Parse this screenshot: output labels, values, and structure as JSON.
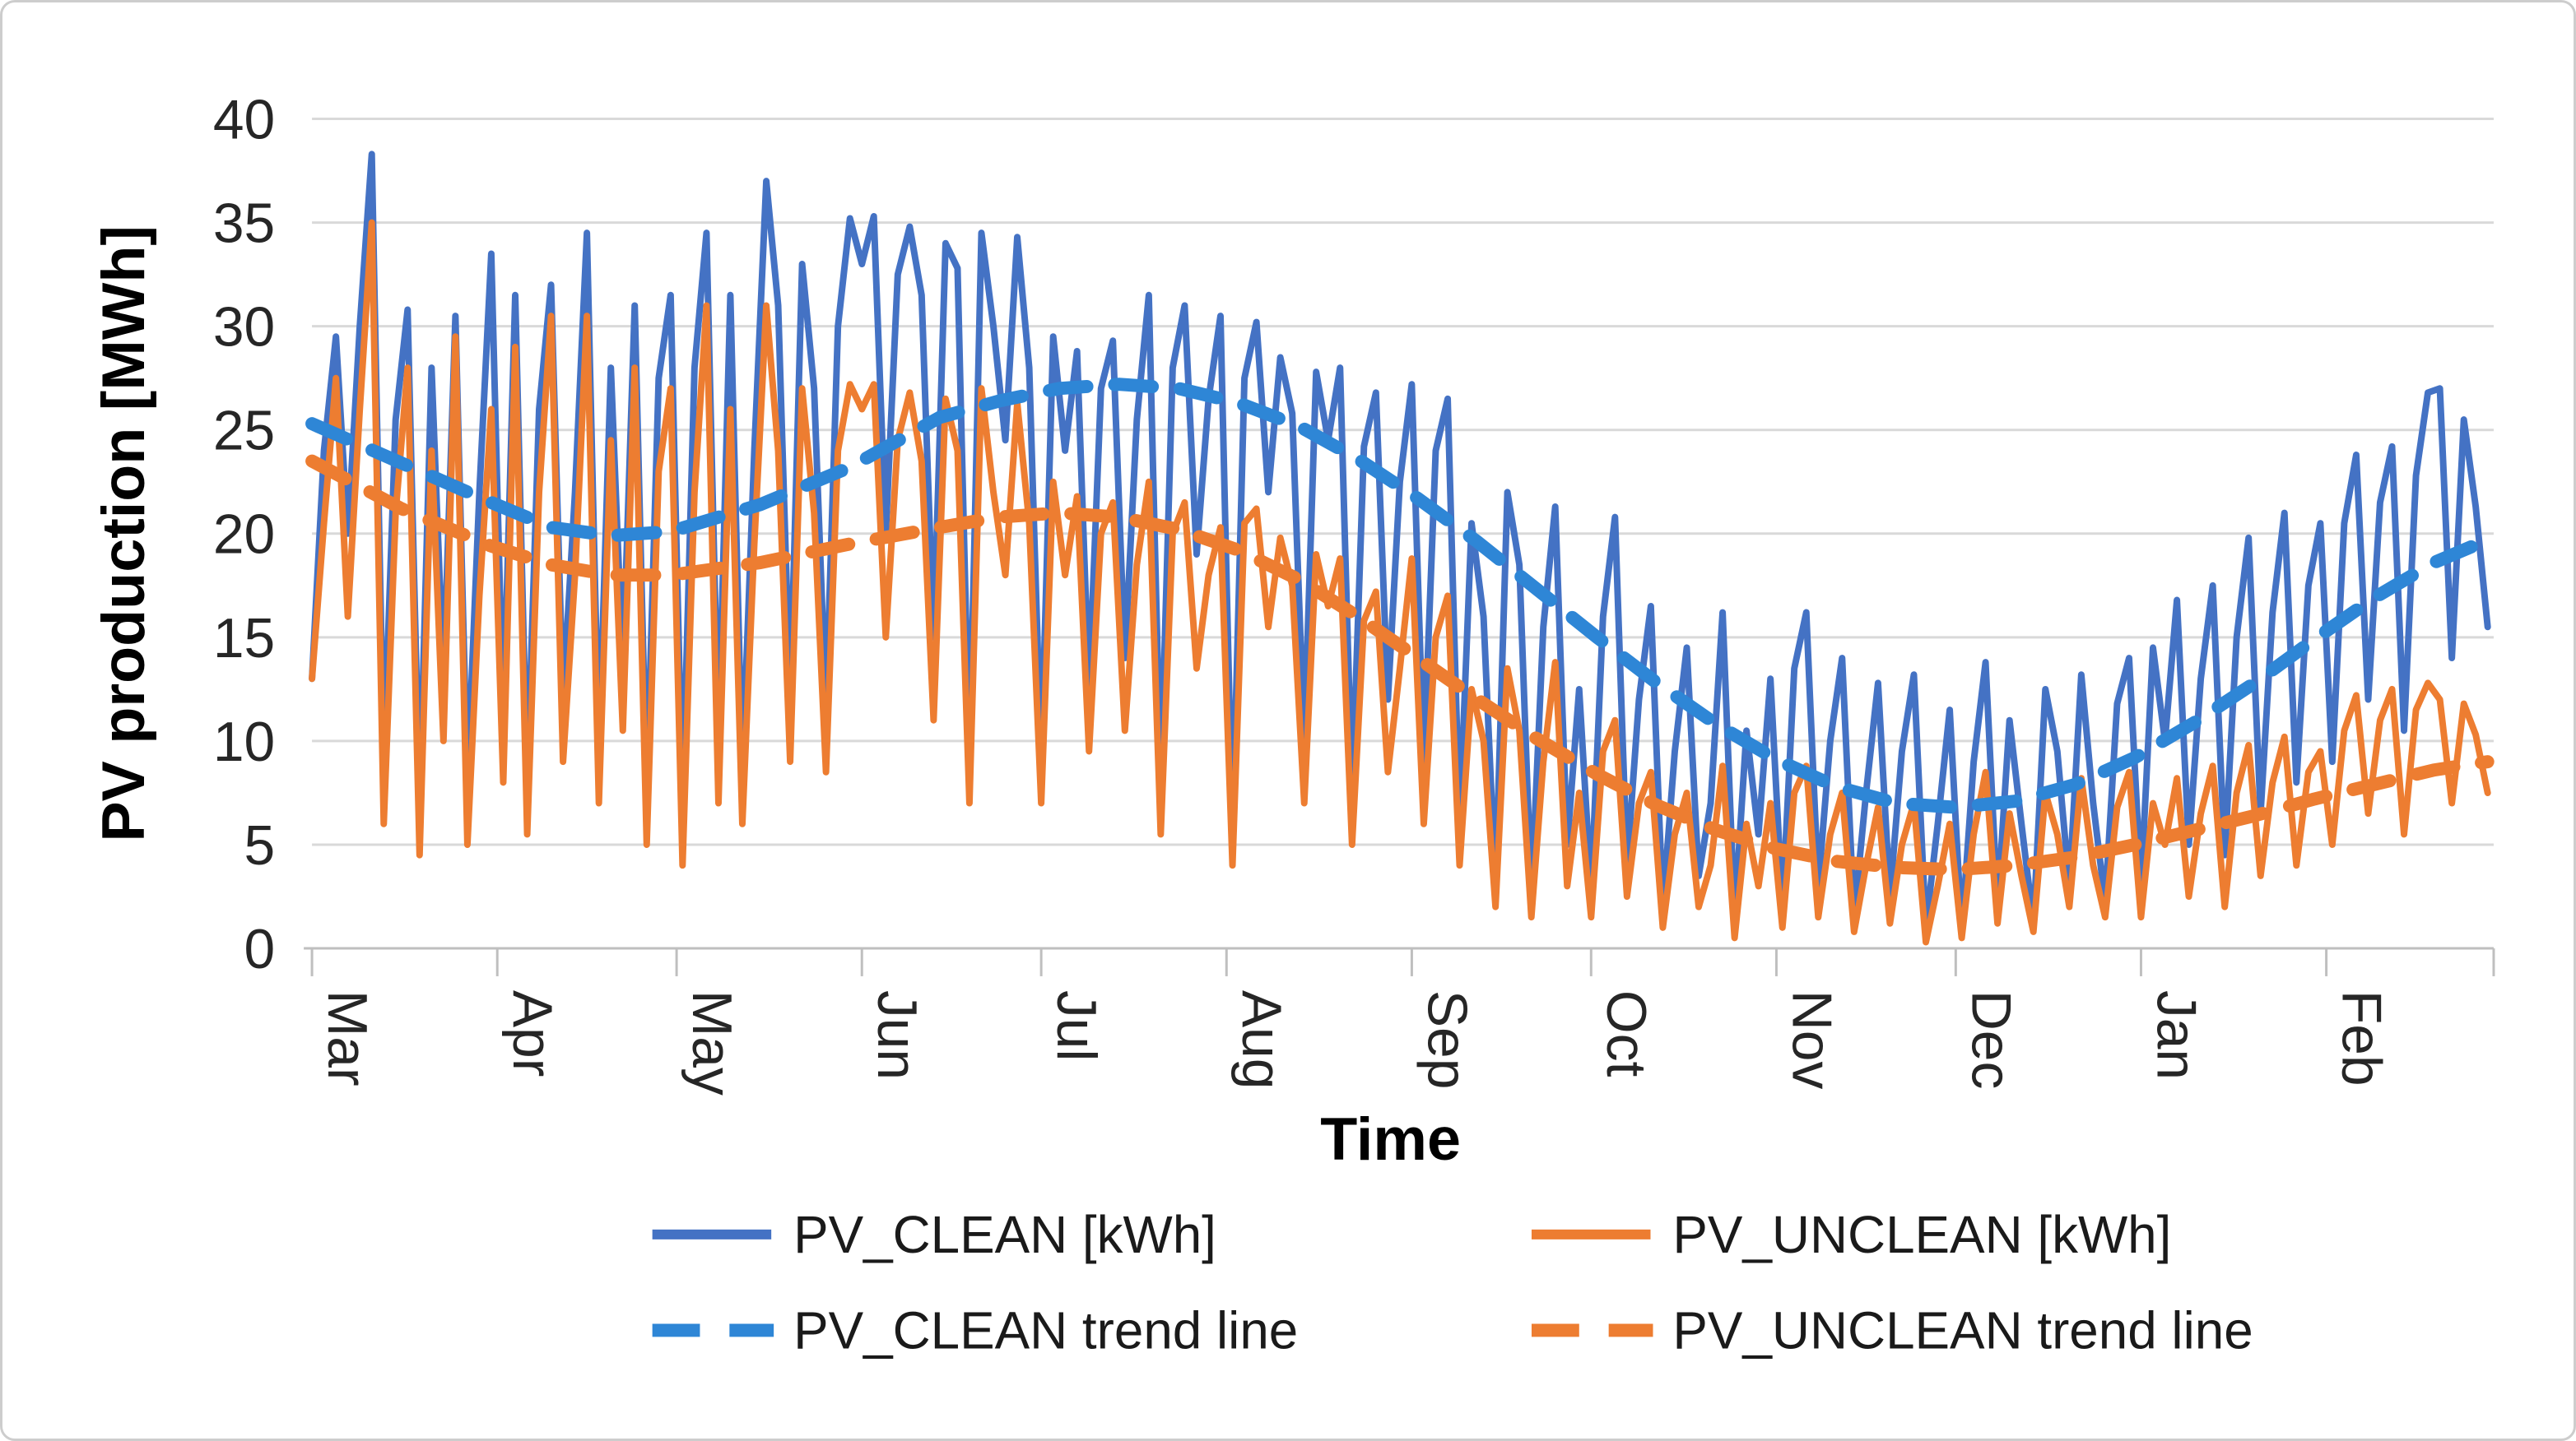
{
  "chart_data": {
    "type": "line",
    "title": "",
    "grid": true,
    "legend_position": "bottom",
    "x_axis": {
      "title": "Time",
      "tick_labels": [
        "Mar",
        "Apr",
        "May",
        "Jun",
        "Jul",
        "Aug",
        "Sep",
        "Oct",
        "Nov",
        "Dec",
        "Jan",
        "Feb"
      ],
      "month_start_days": [
        0,
        31,
        61,
        92,
        122,
        153,
        184,
        214,
        245,
        275,
        306,
        337,
        365
      ],
      "total_days": 365
    },
    "y_axis": {
      "title": "PV production [MWh]",
      "min": 0,
      "max": 40,
      "tick_step": 5
    },
    "series": [
      {
        "name": "PV_CLEAN [kWh]",
        "style": "solid",
        "color": "#4472C4",
        "sample_step_days": 2,
        "values": [
          13,
          24,
          29.5,
          20,
          30,
          38.3,
          9,
          25.5,
          30.8,
          7,
          28,
          13,
          30.5,
          8,
          22,
          33.5,
          11,
          31.5,
          8,
          26,
          32,
          12,
          22,
          34.5,
          9.5,
          28,
          13.5,
          31,
          7.5,
          27.5,
          31.5,
          7,
          28,
          34.5,
          10,
          31.5,
          8.5,
          24,
          37,
          31,
          12,
          33,
          27,
          11.5,
          30,
          35.2,
          33,
          35.3,
          20,
          32.5,
          34.8,
          31.5,
          15,
          34,
          32.8,
          9,
          34.5,
          30,
          24.5,
          34.3,
          28,
          9,
          29.5,
          24,
          28.8,
          12.5,
          27,
          29.3,
          14,
          25.5,
          31.5,
          8,
          28,
          31,
          19,
          26.5,
          30.5,
          5.5,
          27.5,
          30.2,
          22,
          28.5,
          25.8,
          10,
          27.8,
          24.5,
          28,
          7.5,
          24.2,
          26.8,
          12,
          22.5,
          27.2,
          9,
          24,
          26.5,
          6,
          20.5,
          16,
          3,
          22,
          18.5,
          2.5,
          15.5,
          21.3,
          5,
          12.5,
          2.8,
          16,
          20.8,
          4,
          12,
          16.5,
          2,
          9.5,
          14.5,
          3.5,
          7,
          16.2,
          1.5,
          10.5,
          5.5,
          13,
          2,
          13.5,
          16.2,
          3,
          10,
          14,
          1.5,
          7.5,
          12.8,
          2.5,
          9.5,
          13.2,
          1,
          6,
          11.5,
          0.8,
          9,
          13.8,
          2,
          11,
          6,
          1.2,
          12.5,
          9.5,
          3,
          13.2,
          7,
          2.2,
          11.8,
          14,
          3,
          14.5,
          10,
          16.8,
          5,
          13,
          17.5,
          4.5,
          15,
          19.8,
          6.5,
          16.2,
          21,
          8,
          17.5,
          20.5,
          9,
          20.5,
          23.8,
          12,
          21.5,
          24.2,
          10.5,
          22.8,
          26.8,
          27,
          14,
          25.5,
          21.3,
          15.5
        ]
      },
      {
        "name": "PV_UNCLEAN [kWh]",
        "style": "solid",
        "color": "#ED7D31",
        "sample_step_days": 2,
        "values": [
          13,
          20.5,
          27.5,
          16,
          26,
          35,
          6,
          21,
          28,
          4.5,
          24,
          10,
          29.5,
          5,
          17,
          26,
          8,
          29,
          5.5,
          22,
          30.5,
          9,
          18,
          30.5,
          7,
          24.5,
          10.5,
          28,
          5,
          23,
          27,
          4,
          22,
          31,
          7,
          26,
          6,
          19.5,
          31,
          24,
          9,
          27,
          21,
          8.5,
          24,
          27.2,
          26,
          27.2,
          15,
          24.5,
          26.8,
          23.5,
          11,
          26.5,
          24,
          7,
          27,
          22,
          18,
          26.3,
          20.5,
          7,
          22.5,
          18,
          21.8,
          9.5,
          20,
          21.5,
          10.5,
          18.5,
          22.5,
          5.5,
          20,
          21.5,
          13.5,
          18,
          20.3,
          4,
          20.5,
          21.2,
          15.5,
          19.8,
          17.5,
          7,
          19,
          16.5,
          18.8,
          5,
          15.8,
          17.2,
          8.5,
          13.5,
          18.8,
          6,
          15,
          17,
          4,
          12.5,
          10,
          2,
          13.5,
          10.5,
          1.5,
          9,
          13.8,
          3,
          7.5,
          1.5,
          9.5,
          11,
          2.5,
          7,
          8.5,
          1,
          5.5,
          7.5,
          2,
          4,
          8.8,
          0.5,
          6,
          3,
          7,
          1,
          7.5,
          8.8,
          1.5,
          5.5,
          7.5,
          0.8,
          4,
          6.8,
          1.2,
          5,
          7,
          0.3,
          3,
          6,
          0.5,
          5.5,
          8.5,
          1.2,
          6.5,
          3.5,
          0.8,
          7.5,
          5.5,
          2,
          8.2,
          4,
          1.5,
          6.8,
          8.5,
          1.5,
          7,
          5,
          8.2,
          2.5,
          6.5,
          8.8,
          2,
          7.5,
          9.8,
          3.5,
          8,
          10.2,
          4,
          8.5,
          9.5,
          5,
          10.5,
          12.2,
          6.5,
          11,
          12.5,
          5.5,
          11.5,
          12.8,
          12,
          7,
          11.8,
          10.3,
          7.5
        ]
      },
      {
        "name": "PV_CLEAN trend line",
        "style": "dashed",
        "color": "#2E86D6",
        "points": [
          [
            0,
            25.3
          ],
          [
            15,
            23.4
          ],
          [
            30,
            21.5
          ],
          [
            40,
            20.3
          ],
          [
            50,
            19.9
          ],
          [
            60,
            20.1
          ],
          [
            75,
            21.4
          ],
          [
            90,
            23.2
          ],
          [
            105,
            25.6
          ],
          [
            115,
            26.4
          ],
          [
            125,
            27.0
          ],
          [
            135,
            27.2
          ],
          [
            145,
            27.0
          ],
          [
            155,
            26.3
          ],
          [
            165,
            25.2
          ],
          [
            175,
            23.6
          ],
          [
            185,
            21.7
          ],
          [
            195,
            19.6
          ],
          [
            205,
            17.3
          ],
          [
            215,
            15.0
          ],
          [
            225,
            12.8
          ],
          [
            235,
            10.8
          ],
          [
            245,
            9.1
          ],
          [
            255,
            7.8
          ],
          [
            265,
            7.0
          ],
          [
            275,
            6.8
          ],
          [
            285,
            7.1
          ],
          [
            295,
            7.9
          ],
          [
            305,
            9.2
          ],
          [
            315,
            10.9
          ],
          [
            325,
            12.8
          ],
          [
            335,
            14.9
          ],
          [
            345,
            16.9
          ],
          [
            355,
            18.6
          ],
          [
            364,
            19.7
          ]
        ]
      },
      {
        "name": "PV_UNCLEAN trend line",
        "style": "dashed",
        "color": "#ED7D31",
        "points": [
          [
            0,
            23.5
          ],
          [
            15,
            21.2
          ],
          [
            30,
            19.4
          ],
          [
            40,
            18.5
          ],
          [
            50,
            18.0
          ],
          [
            60,
            18.0
          ],
          [
            75,
            18.6
          ],
          [
            90,
            19.5
          ],
          [
            105,
            20.3
          ],
          [
            115,
            20.8
          ],
          [
            125,
            21.0
          ],
          [
            135,
            20.8
          ],
          [
            145,
            20.2
          ],
          [
            155,
            19.2
          ],
          [
            165,
            17.8
          ],
          [
            175,
            16.0
          ],
          [
            185,
            14.0
          ],
          [
            195,
            12.0
          ],
          [
            205,
            10.1
          ],
          [
            215,
            8.4
          ],
          [
            225,
            6.9
          ],
          [
            235,
            5.7
          ],
          [
            245,
            4.8
          ],
          [
            255,
            4.2
          ],
          [
            265,
            3.9
          ],
          [
            275,
            3.8
          ],
          [
            285,
            4.0
          ],
          [
            295,
            4.4
          ],
          [
            305,
            5.0
          ],
          [
            315,
            5.7
          ],
          [
            325,
            6.4
          ],
          [
            335,
            7.2
          ],
          [
            345,
            7.9
          ],
          [
            355,
            8.6
          ],
          [
            364,
            9.0
          ]
        ]
      }
    ]
  },
  "legend": {
    "items": [
      {
        "label": "PV_CLEAN [kWh]",
        "color": "#4472C4",
        "dashed": false
      },
      {
        "label": "PV_UNCLEAN [kWh]",
        "color": "#ED7D31",
        "dashed": false
      },
      {
        "label": "PV_CLEAN trend line",
        "color": "#2E86D6",
        "dashed": true
      },
      {
        "label": "PV_UNCLEAN trend line",
        "color": "#ED7D31",
        "dashed": true
      }
    ]
  },
  "styles": {
    "gridline_color": "#D9D9D9",
    "axis_line_color": "#BFBFBF",
    "tick_text_color": "#262626",
    "series_stroke_width": 8,
    "trend_stroke_width": 16
  }
}
